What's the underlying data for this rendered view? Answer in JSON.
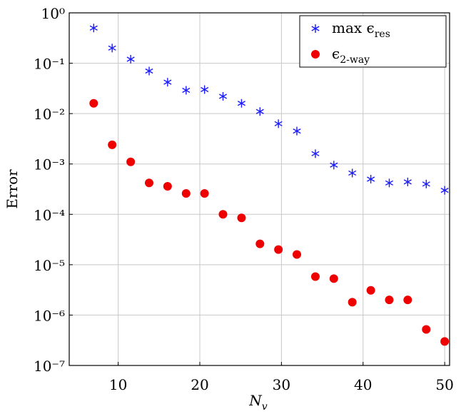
{
  "chart_data": {
    "type": "scatter",
    "xlabel": "Nv",
    "ylabel": "Error",
    "xlim": [
      4,
      50.6
    ],
    "ylim": [
      1e-07,
      1
    ],
    "log_y": true,
    "grid": true,
    "legend": "top-right",
    "xticks": [
      10,
      20,
      30,
      40,
      50
    ],
    "yticks": [
      {
        "value": 1e-07,
        "label": "10⁻⁷"
      },
      {
        "value": 1e-06,
        "label": "10⁻⁶"
      },
      {
        "value": 1e-05,
        "label": "10⁻⁵"
      },
      {
        "value": 0.0001,
        "label": "10⁻⁴"
      },
      {
        "value": 0.001,
        "label": "10⁻³"
      },
      {
        "value": 0.01,
        "label": "10⁻²"
      },
      {
        "value": 0.1,
        "label": "10⁻¹"
      },
      {
        "value": 1,
        "label": "10⁰"
      }
    ],
    "series": [
      {
        "name": "max ϵres",
        "color": "#1a1aff",
        "marker": "asterisk",
        "x": [
          7,
          9.26,
          11.53,
          13.79,
          16.05,
          18.32,
          20.58,
          22.84,
          25.11,
          27.37,
          29.63,
          31.89,
          34.16,
          36.42,
          38.68,
          40.95,
          43.21,
          45.47,
          47.74,
          50
        ],
        "values": [
          0.5,
          0.2,
          0.12,
          0.07,
          0.042,
          0.029,
          0.03,
          0.022,
          0.016,
          0.011,
          0.0063,
          0.0045,
          0.0016,
          0.00095,
          0.00066,
          0.0005,
          0.00042,
          0.00044,
          0.0004,
          0.0003
        ]
      },
      {
        "name": "ϵ2-way",
        "color": "#ee0000",
        "marker": "circle",
        "x": [
          7,
          9.26,
          11.53,
          13.79,
          16.05,
          18.32,
          20.58,
          22.84,
          25.11,
          27.37,
          29.63,
          31.89,
          34.16,
          36.42,
          38.68,
          40.95,
          43.21,
          45.47,
          47.74,
          50
        ],
        "values": [
          0.016,
          0.0024,
          0.0011,
          0.00042,
          0.00036,
          0.00026,
          0.00026,
          0.0001,
          8.5e-05,
          2.6e-05,
          2e-05,
          1.6e-05,
          5.8e-06,
          5.3e-06,
          1.8e-06,
          3.1e-06,
          2e-06,
          2e-06,
          5.2e-07,
          3e-07
        ]
      }
    ]
  }
}
